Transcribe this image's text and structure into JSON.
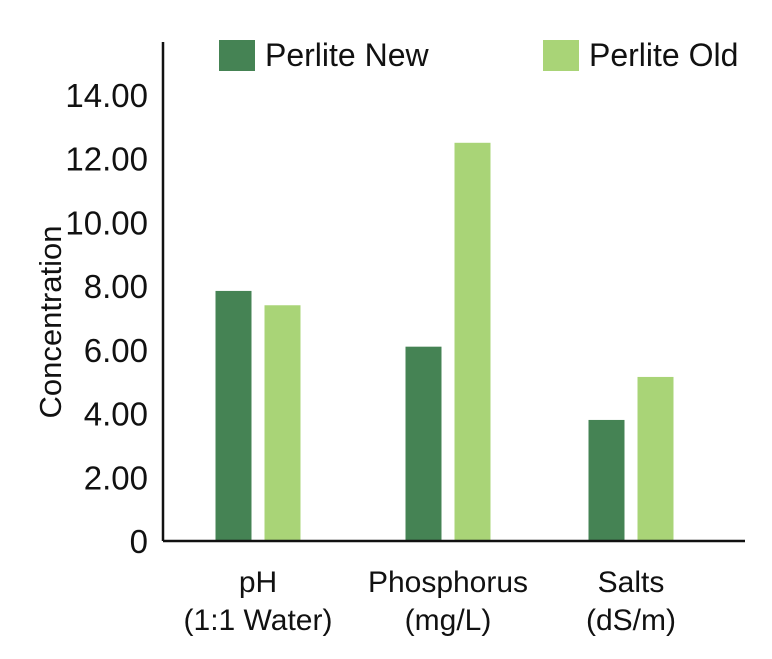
{
  "chart_data": {
    "type": "bar",
    "title": "",
    "ylabel": "Concentration",
    "xlabel": "",
    "categories": [
      [
        "pH",
        "(1:1 Water)"
      ],
      [
        "Phosphorus",
        "(mg/L)"
      ],
      [
        "Salts",
        "(dS/m)"
      ]
    ],
    "series": [
      {
        "name": "Perlite New",
        "color": "#458354",
        "values": [
          7.85,
          6.1,
          3.8
        ]
      },
      {
        "name": "Perlite Old",
        "color": "#a9d477",
        "values": [
          7.4,
          12.5,
          5.15
        ]
      }
    ],
    "ylim": [
      0,
      14
    ],
    "yticks": [
      0,
      2,
      4,
      6,
      8,
      10,
      12,
      14
    ],
    "ytick_labels": [
      "0",
      "2.00",
      "4.00",
      "6.00",
      "8.00",
      "10.00",
      "12.00",
      "14.00"
    ],
    "grid": false,
    "legend_position": "top"
  }
}
